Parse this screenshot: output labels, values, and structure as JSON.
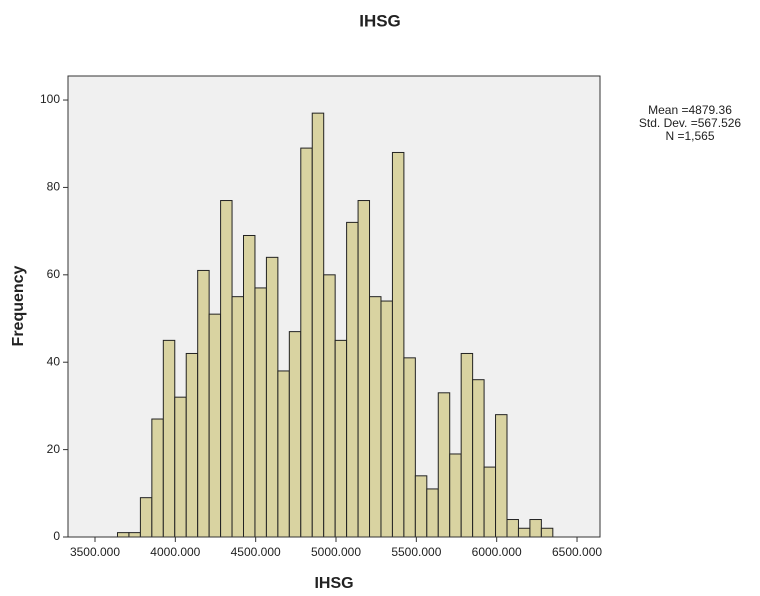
{
  "chart_data": {
    "type": "histogram",
    "title": "IHSG",
    "x_label": "IHSG",
    "y_label": "Frequency",
    "bins": [
      3640,
      3711.3,
      3782.6,
      3853.9,
      3925.2,
      3996.5,
      4067.8,
      4139.1,
      4210.4,
      4281.7,
      4353,
      4424.3,
      4495.6,
      4566.9,
      4638.2,
      4709.5,
      4780.8,
      4852.1,
      4923.4,
      4994.7,
      5066,
      5137.3,
      5208.6,
      5279.9,
      5351.2,
      5422.5,
      5493.8,
      5565.1,
      5636.4,
      5707.7,
      5779,
      5850.3,
      5921.6,
      5992.9,
      6064.2,
      6135.5,
      6206.8,
      6278.1,
      6349.4
    ],
    "values": [
      1,
      1,
      9,
      27,
      45,
      32,
      42,
      61,
      51,
      77,
      55,
      69,
      57,
      64,
      38,
      47,
      89,
      97,
      60,
      45,
      72,
      77,
      55,
      54,
      88,
      41,
      14,
      11,
      33,
      19,
      42,
      36,
      16,
      28,
      4,
      2,
      4,
      2
    ],
    "color": "#d9d3a1",
    "xlim": [
      3332,
      6643
    ],
    "ylim": [
      0,
      105.5
    ],
    "xticks": [
      {
        "value": 3500,
        "label": "3500.000"
      },
      {
        "value": 4000,
        "label": "4000.000"
      },
      {
        "value": 4500,
        "label": "4500.000"
      },
      {
        "value": 5000,
        "label": "5000.000"
      },
      {
        "value": 5500,
        "label": "5500.000"
      },
      {
        "value": 6000,
        "label": "6000.000"
      },
      {
        "value": 6500,
        "label": "6500.000"
      }
    ],
    "yticks": [
      0,
      20,
      40,
      60,
      80,
      100
    ],
    "annotations": [
      "Mean =4879.36",
      "Std. Dev. =567.526",
      "N =1,565"
    ]
  }
}
